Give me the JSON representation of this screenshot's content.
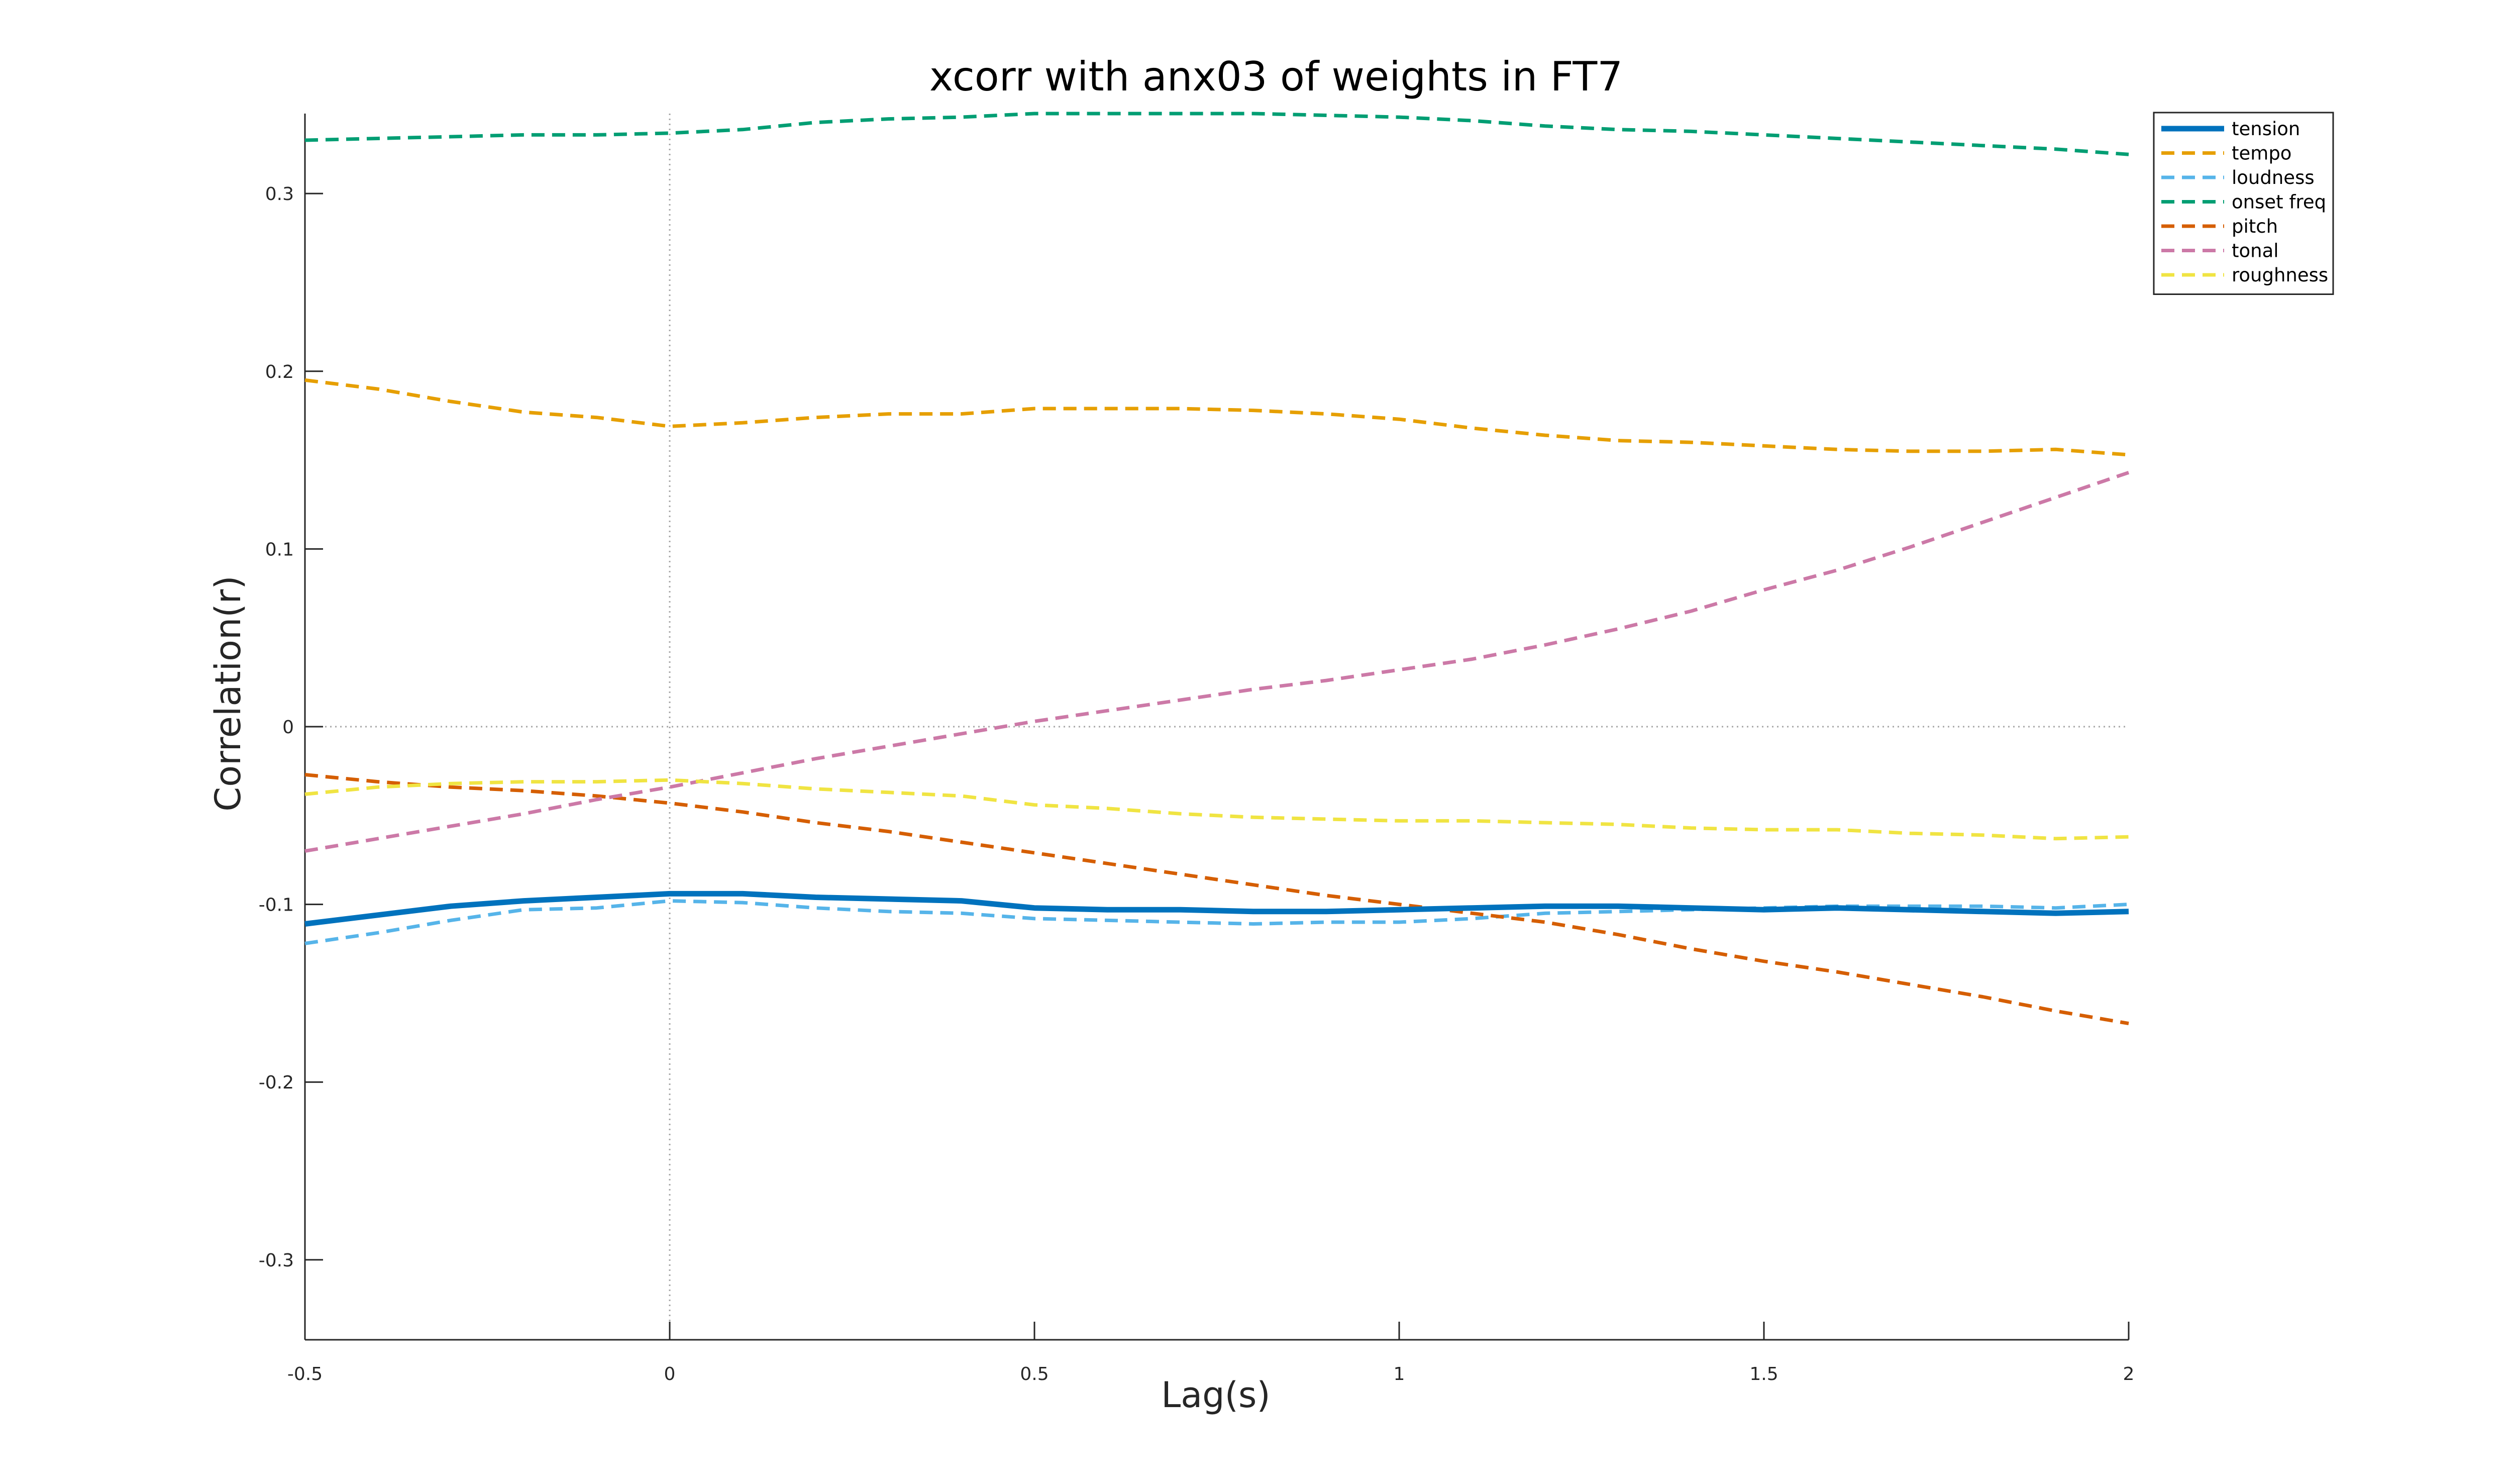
{
  "chart_data": {
    "type": "line",
    "title": "xcorr with anx03 of weights in FT7",
    "xlabel": "Lag(s)",
    "ylabel": "Correlation(r)",
    "xlim": [
      -0.5,
      2
    ],
    "ylim": [
      -0.345,
      0.345
    ],
    "xticks": [
      -0.5,
      0,
      0.5,
      1,
      1.5,
      2
    ],
    "yticks": [
      -0.3,
      -0.2,
      -0.1,
      0,
      0.1,
      0.2,
      0.3
    ],
    "xtick_labels": [
      "-0.5",
      "0",
      "0.5",
      "1",
      "1.5",
      "2"
    ],
    "ytick_labels": [
      "-0.3",
      "-0.2",
      "-0.1",
      "0",
      "0.1",
      "0.2",
      "0.3"
    ],
    "grid": false,
    "reference_lines": {
      "x": 0,
      "y": 0,
      "style": "dotted",
      "color": "#a6a6a6"
    },
    "legend_position": "top-right",
    "x": [
      -0.5,
      -0.4,
      -0.3,
      -0.2,
      -0.1,
      0,
      0.1,
      0.2,
      0.3,
      0.4,
      0.5,
      0.6,
      0.7,
      0.8,
      0.9,
      1.0,
      1.1,
      1.2,
      1.3,
      1.4,
      1.5,
      1.6,
      1.7,
      1.8,
      1.9,
      2.0
    ],
    "series": [
      {
        "name": "tension",
        "color": "#0072bd",
        "style": "solid",
        "width": 11,
        "values": [
          -0.111,
          -0.106,
          -0.101,
          -0.098,
          -0.096,
          -0.094,
          -0.094,
          -0.096,
          -0.097,
          -0.098,
          -0.102,
          -0.103,
          -0.103,
          -0.104,
          -0.104,
          -0.103,
          -0.102,
          -0.101,
          -0.101,
          -0.102,
          -0.103,
          -0.102,
          -0.103,
          -0.104,
          -0.105,
          -0.104
        ]
      },
      {
        "name": "tempo",
        "color": "#e69f00",
        "style": "dashed",
        "width": 7,
        "values": [
          0.195,
          0.19,
          0.183,
          0.177,
          0.174,
          0.169,
          0.171,
          0.174,
          0.176,
          0.176,
          0.179,
          0.179,
          0.179,
          0.178,
          0.176,
          0.173,
          0.168,
          0.164,
          0.161,
          0.16,
          0.158,
          0.156,
          0.155,
          0.155,
          0.156,
          0.153
        ]
      },
      {
        "name": "loudness",
        "color": "#56b4e9",
        "style": "dashed",
        "width": 7,
        "values": [
          -0.122,
          -0.116,
          -0.109,
          -0.103,
          -0.102,
          -0.098,
          -0.099,
          -0.102,
          -0.104,
          -0.105,
          -0.108,
          -0.109,
          -0.11,
          -0.111,
          -0.11,
          -0.11,
          -0.108,
          -0.105,
          -0.104,
          -0.103,
          -0.102,
          -0.101,
          -0.101,
          -0.101,
          -0.102,
          -0.1
        ]
      },
      {
        "name": "onset freq",
        "color": "#009e73",
        "style": "dashed",
        "width": 7,
        "values": [
          0.33,
          0.331,
          0.332,
          0.333,
          0.333,
          0.334,
          0.336,
          0.34,
          0.342,
          0.343,
          0.345,
          0.345,
          0.345,
          0.345,
          0.344,
          0.343,
          0.341,
          0.338,
          0.336,
          0.335,
          0.333,
          0.331,
          0.329,
          0.327,
          0.325,
          0.322
        ]
      },
      {
        "name": "pitch",
        "color": "#d55e00",
        "style": "dashed",
        "width": 7,
        "values": [
          -0.027,
          -0.031,
          -0.034,
          -0.036,
          -0.039,
          -0.043,
          -0.048,
          -0.054,
          -0.059,
          -0.065,
          -0.071,
          -0.077,
          -0.083,
          -0.089,
          -0.095,
          -0.1,
          -0.105,
          -0.11,
          -0.117,
          -0.125,
          -0.132,
          -0.138,
          -0.145,
          -0.152,
          -0.16,
          -0.167
        ]
      },
      {
        "name": "tonal",
        "color": "#cc79a7",
        "style": "dashed",
        "width": 7,
        "values": [
          -0.07,
          -0.063,
          -0.056,
          -0.049,
          -0.041,
          -0.034,
          -0.026,
          -0.018,
          -0.011,
          -0.004,
          0.003,
          0.009,
          0.015,
          0.021,
          0.026,
          0.032,
          0.038,
          0.046,
          0.055,
          0.065,
          0.077,
          0.088,
          0.101,
          0.115,
          0.129,
          0.143
        ]
      },
      {
        "name": "roughness",
        "color": "#f0e442",
        "style": "dashed",
        "width": 7,
        "values": [
          -0.038,
          -0.034,
          -0.032,
          -0.031,
          -0.031,
          -0.03,
          -0.032,
          -0.035,
          -0.037,
          -0.039,
          -0.044,
          -0.046,
          -0.049,
          -0.051,
          -0.052,
          -0.053,
          -0.053,
          -0.054,
          -0.055,
          -0.057,
          -0.058,
          -0.058,
          -0.06,
          -0.061,
          -0.063,
          -0.062
        ]
      }
    ]
  }
}
